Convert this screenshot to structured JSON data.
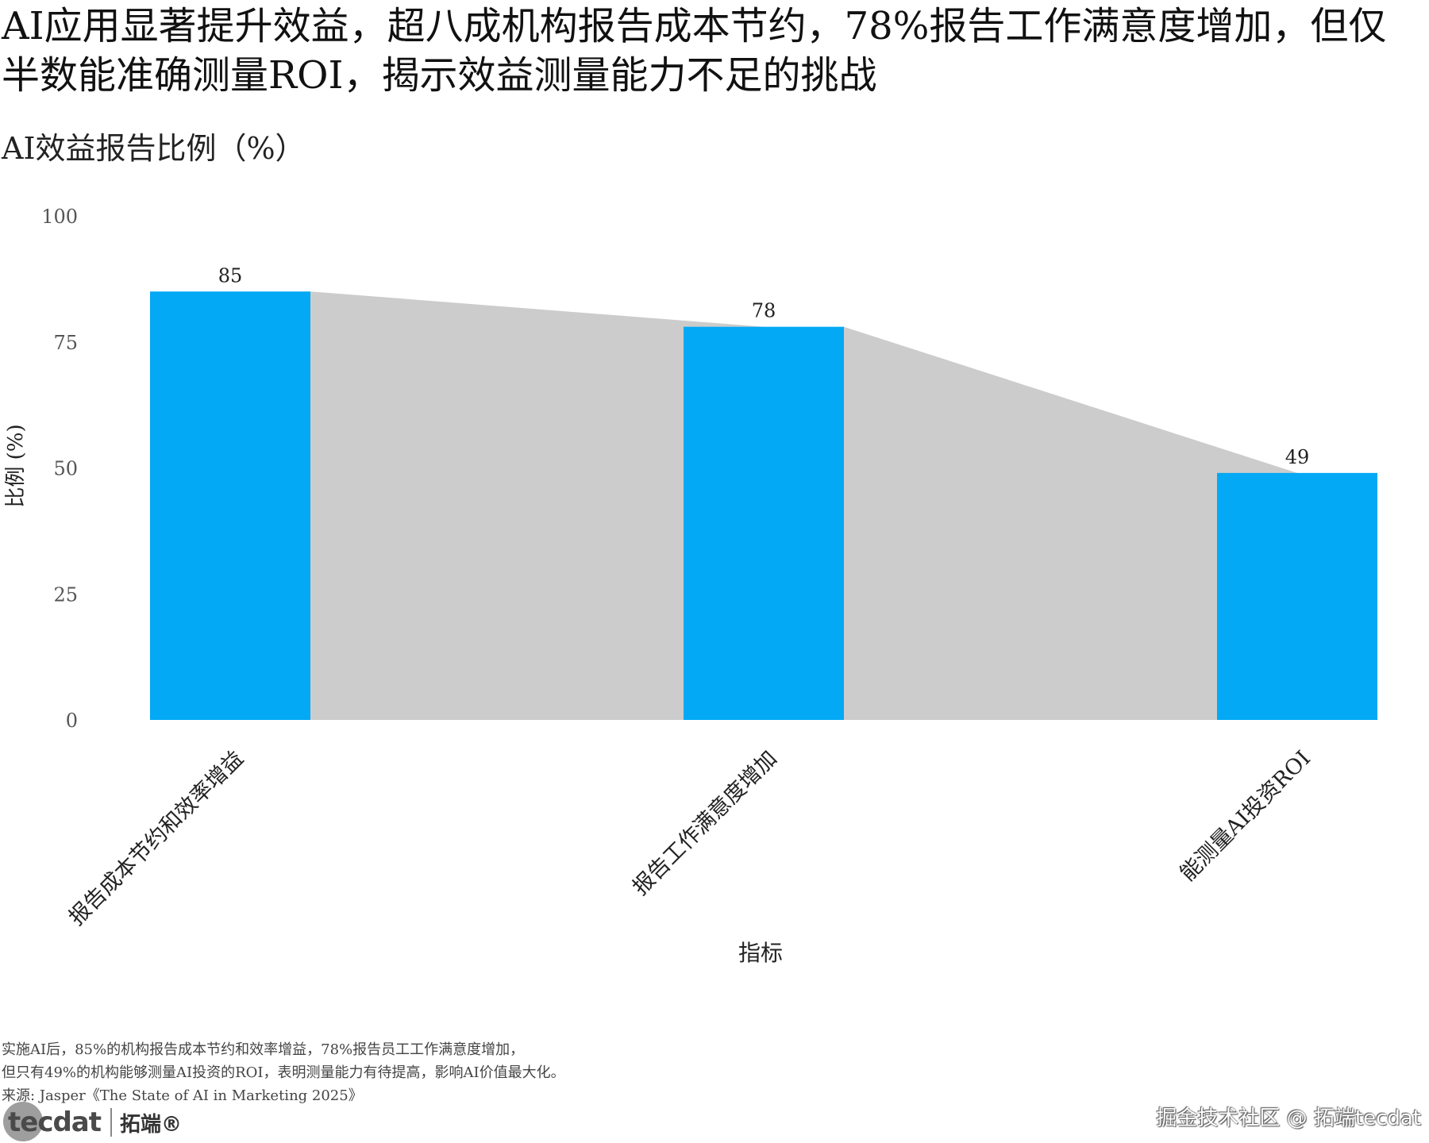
{
  "header": {
    "title": "AI应用显著提升效益，超八成机构报告成本节约，78%报告工作满意度增加，但仅半数能准确测量ROI，揭示效益测量能力不足的挑战",
    "subtitle": "AI效益报告比例（%）"
  },
  "chart_data": {
    "type": "bar",
    "categories": [
      "报告成本节约和效率增益",
      "报告工作满意度增加",
      "能测量AI投资ROI"
    ],
    "values": [
      85,
      78,
      49
    ],
    "data_labels": [
      "85",
      "78",
      "49"
    ],
    "xlabel": "指标",
    "ylabel": "比例 (%)",
    "ylim": [
      0,
      100
    ],
    "yticks": [
      0,
      25,
      50,
      75,
      100
    ],
    "grid": false,
    "bar_color": "#03A9F4",
    "connector_area_color": "#CCCCCC",
    "x_tick_rotation": "45 degrees"
  },
  "footer": {
    "note_line1": "实施AI后，85%的机构报告成本节约和效率增益，78%报告员工工作满意度增加，",
    "note_line2": "但只有49%的机构能够测量AI投资的ROI，表明测量能力有待提高，影响AI价值最大化。",
    "source": "来源: Jasper《The State of AI in Marketing 2025》"
  },
  "branding": {
    "logo_text": "tecdat",
    "logo_cn": "拓端®",
    "watermark": "掘金技术社区 @ 拓端tecdat"
  }
}
